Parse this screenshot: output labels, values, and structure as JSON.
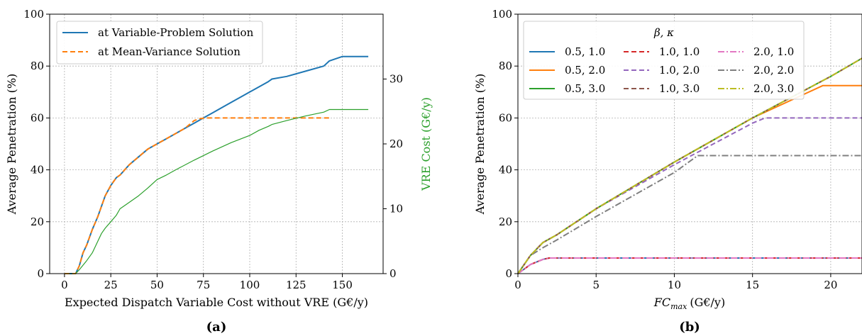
{
  "chart_data": [
    {
      "panel_label": "(a)",
      "type": "line",
      "xlabel": "Expected Dispatch Variable Cost without VRE (G€/y)",
      "ylabel": "Average Penetration (%)",
      "y2label": "VRE Cost (G€/y)",
      "xlim": [
        -8,
        172
      ],
      "ylim": [
        0,
        100
      ],
      "y2lim": [
        0,
        40
      ],
      "x_ticks": [
        "0",
        "25",
        "50",
        "75",
        "100",
        "125",
        "150"
      ],
      "y_ticks": [
        "0",
        "20",
        "40",
        "60",
        "80",
        "100"
      ],
      "y2_ticks": [
        "0",
        "10",
        "20",
        "30"
      ],
      "grid": true,
      "legend_position": "top-left",
      "series": [
        {
          "name": "at Variable-Problem Solution",
          "axis": "left",
          "color": "#1f77b4",
          "dash": "solid",
          "x": [
            0,
            6,
            8,
            10,
            12,
            15,
            18,
            20,
            22,
            25,
            28,
            30,
            35,
            40,
            45,
            50,
            55,
            60,
            65,
            70,
            75,
            80,
            85,
            90,
            95,
            100,
            105,
            110,
            112,
            120,
            130,
            140,
            143,
            150,
            164
          ],
          "y": [
            0,
            0,
            3,
            8,
            11,
            17,
            22,
            26,
            30,
            34,
            37,
            38,
            42,
            45,
            48,
            50,
            52,
            54,
            56,
            58,
            60,
            62,
            64,
            66,
            68,
            70,
            72,
            74,
            75,
            76,
            78,
            80,
            82,
            83.7,
            83.7
          ]
        },
        {
          "name": "at Mean-Variance Solution",
          "axis": "left",
          "color": "#ff7f0e",
          "dash": "dashed",
          "x": [
            0,
            6,
            8,
            10,
            12,
            15,
            18,
            20,
            22,
            25,
            28,
            30,
            35,
            40,
            45,
            50,
            55,
            60,
            65,
            70,
            73,
            76,
            80,
            100,
            120,
            143
          ],
          "y": [
            0,
            0,
            3,
            8,
            11,
            17,
            22,
            26,
            30,
            34,
            37,
            38,
            42,
            45,
            48,
            50,
            52,
            54,
            56,
            59,
            59.7,
            60,
            60,
            60,
            60,
            60
          ]
        },
        {
          "name": "VRE Cost",
          "axis": "right",
          "color": "#2ca02c",
          "dash": "solid",
          "x": [
            0,
            6,
            8,
            10,
            12,
            15,
            18,
            20,
            22,
            25,
            28,
            30,
            35,
            40,
            45,
            50,
            55,
            60,
            70,
            80,
            90,
            100,
            105,
            110,
            112,
            120,
            130,
            140,
            143,
            150,
            164
          ],
          "y": [
            0,
            0,
            0.6,
            1.3,
            2,
            3.2,
            5,
            6.2,
            7,
            8,
            9,
            10,
            11,
            12,
            13.2,
            14.5,
            15.2,
            16,
            17.5,
            18.9,
            20.2,
            21.3,
            22.1,
            22.7,
            23.0,
            23.6,
            24.3,
            24.9,
            25.3,
            25.3,
            25.3
          ]
        }
      ]
    },
    {
      "panel_label": "(b)",
      "type": "line",
      "xlabel": "FC",
      "xlabel_sub": "max",
      "xlabel_unit": "(G€/y)",
      "ylabel": "Average Penetration (%)",
      "xlim": [
        0,
        22
      ],
      "ylim": [
        0,
        100
      ],
      "x_ticks": [
        "0",
        "5",
        "10",
        "15",
        "20"
      ],
      "y_ticks": [
        "0",
        "20",
        "40",
        "60",
        "80",
        "100"
      ],
      "grid": true,
      "legend_title": "β, κ",
      "legend_position": "top-left",
      "series": [
        {
          "name": "0.5, 1.0",
          "color": "#1f77b4",
          "dash": "solid",
          "x": [
            0,
            0.8,
            1.6,
            2.0,
            22
          ],
          "y": [
            0,
            3.5,
            5.5,
            6,
            6
          ]
        },
        {
          "name": "0.5, 2.0",
          "color": "#ff7f0e",
          "dash": "solid",
          "x": [
            0,
            0.8,
            1.6,
            2.5,
            5,
            10,
            15,
            19.5,
            22
          ],
          "y": [
            0,
            7,
            12,
            15,
            25,
            43,
            60,
            72.5,
            72.5
          ]
        },
        {
          "name": "0.5, 3.0",
          "color": "#2ca02c",
          "dash": "solid",
          "x": [
            0,
            0.8,
            1.6,
            2.5,
            5,
            10,
            15,
            20,
            22
          ],
          "y": [
            0,
            7,
            12,
            15,
            25,
            43,
            60,
            76,
            83
          ]
        },
        {
          "name": "1.0, 1.0",
          "color": "#d62728",
          "dash": "dashed",
          "x": [
            0,
            0.8,
            1.6,
            2.0,
            22
          ],
          "y": [
            0,
            3.5,
            5.5,
            6,
            6
          ]
        },
        {
          "name": "1.0, 2.0",
          "color": "#9467bd",
          "dash": "dashed",
          "x": [
            0,
            0.8,
            1.6,
            2.5,
            5,
            10,
            15,
            15.8,
            22
          ],
          "y": [
            0,
            7,
            12,
            15,
            25,
            42,
            58,
            60,
            60
          ]
        },
        {
          "name": "1.0, 3.0",
          "color": "#8c564b",
          "dash": "dashed",
          "x": [
            0,
            0.8,
            1.6,
            2.5,
            5,
            10,
            15,
            20,
            22
          ],
          "y": [
            0,
            7,
            12,
            15,
            25,
            43,
            60,
            76,
            83
          ]
        },
        {
          "name": "2.0, 1.0",
          "color": "#e377c2",
          "dash": "dashdot",
          "x": [
            0,
            0.8,
            1.6,
            2.0,
            22
          ],
          "y": [
            0,
            3.5,
            5.5,
            6,
            6
          ]
        },
        {
          "name": "2.0, 2.0",
          "color": "#7f7f7f",
          "dash": "dashdot",
          "x": [
            0,
            0.8,
            1.6,
            2.5,
            5,
            10,
            11.5,
            22
          ],
          "y": [
            0,
            7,
            10,
            13,
            22,
            39,
            45.5,
            45.5
          ]
        },
        {
          "name": "2.0, 3.0",
          "color": "#bcbd22",
          "dash": "dashdot",
          "x": [
            0,
            0.8,
            1.6,
            2.5,
            5,
            10,
            15,
            20,
            22
          ],
          "y": [
            0,
            7,
            12,
            15,
            25,
            43,
            60,
            76,
            83
          ]
        }
      ]
    }
  ]
}
